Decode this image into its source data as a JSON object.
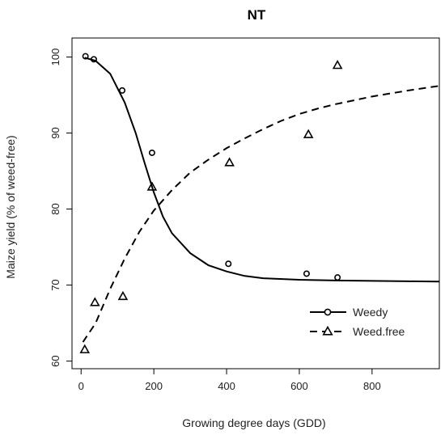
{
  "chart_data": {
    "type": "scatter",
    "title": "NT",
    "xlabel": "Growing degree days (GDD)",
    "ylabel": "Maize yield (% of weed-free)",
    "xlim": [
      -25,
      985
    ],
    "ylim": [
      59,
      102.5
    ],
    "xticks": [
      0,
      200,
      400,
      600,
      800
    ],
    "yticks": [
      60,
      70,
      80,
      90,
      100
    ],
    "grid": false,
    "legend_position": "bottom-right",
    "series": [
      {
        "name": "Weedy",
        "marker": "circle",
        "line_style": "solid",
        "color": "#000000",
        "points": [
          [
            12,
            100.1
          ],
          [
            35,
            99.7
          ],
          [
            113,
            95.6
          ],
          [
            195,
            87.4
          ],
          [
            405,
            72.8
          ],
          [
            620,
            71.5
          ],
          [
            705,
            71.0
          ]
        ],
        "fitted_curve": [
          [
            10,
            99.9
          ],
          [
            40,
            99.5
          ],
          [
            80,
            97.8
          ],
          [
            120,
            94.0
          ],
          [
            150,
            90.0
          ],
          [
            175,
            86.0
          ],
          [
            200,
            82.2
          ],
          [
            225,
            79.0
          ],
          [
            250,
            76.8
          ],
          [
            300,
            74.2
          ],
          [
            350,
            72.6
          ],
          [
            400,
            71.8
          ],
          [
            450,
            71.2
          ],
          [
            500,
            70.9
          ],
          [
            600,
            70.7
          ],
          [
            700,
            70.6
          ],
          [
            800,
            70.55
          ],
          [
            900,
            70.5
          ],
          [
            985,
            70.45
          ]
        ]
      },
      {
        "name": "Weed.free",
        "marker": "triangle",
        "line_style": "dashed",
        "color": "#000000",
        "points": [
          [
            10,
            61.5
          ],
          [
            38,
            67.7
          ],
          [
            115,
            68.5
          ],
          [
            195,
            82.9
          ],
          [
            408,
            86.1
          ],
          [
            625,
            89.8
          ],
          [
            705,
            98.9
          ]
        ],
        "fitted_curve": [
          [
            5,
            62.5
          ],
          [
            40,
            65.0
          ],
          [
            80,
            69.5
          ],
          [
            120,
            73.5
          ],
          [
            160,
            77.0
          ],
          [
            200,
            79.8
          ],
          [
            250,
            82.5
          ],
          [
            300,
            84.8
          ],
          [
            350,
            86.5
          ],
          [
            400,
            88.0
          ],
          [
            450,
            89.3
          ],
          [
            500,
            90.5
          ],
          [
            550,
            91.6
          ],
          [
            600,
            92.5
          ],
          [
            650,
            93.2
          ],
          [
            700,
            93.8
          ],
          [
            750,
            94.3
          ],
          [
            800,
            94.8
          ],
          [
            850,
            95.2
          ],
          [
            900,
            95.6
          ],
          [
            985,
            96.2
          ]
        ]
      }
    ]
  }
}
